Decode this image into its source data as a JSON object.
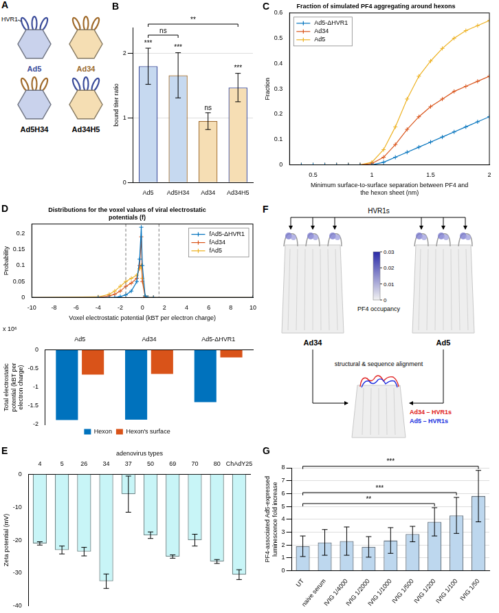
{
  "chart_data": [
    {
      "panel": "B",
      "type": "bar",
      "categories": [
        "Ad5",
        "Ad5H34",
        "Ad34",
        "Ad34H5"
      ],
      "values": [
        1.8,
        1.66,
        0.95,
        1.47
      ],
      "errors": [
        0.28,
        0.35,
        0.13,
        0.22
      ],
      "colors": [
        "#c6d9f0",
        "#c6d9f0",
        "#f6deb4",
        "#f6deb4"
      ],
      "y_label": "bound titer ratio",
      "ylim": [
        0,
        2.4
      ],
      "yticks": [
        0,
        1,
        2
      ],
      "grid": true,
      "significance": [
        "***",
        "***",
        "ns",
        "***"
      ],
      "brackets": [
        {
          "from": "Ad5",
          "to": "Ad5H34",
          "label": "ns"
        },
        {
          "from": "Ad5",
          "to": "Ad34H5",
          "label": "**"
        }
      ]
    },
    {
      "panel": "C",
      "type": "line",
      "title": "Fraction of simulated PF4 aggregating around hexons",
      "x_label": "Minimum surface-to-surface separation between PF4 and the hexon sheet (nm)",
      "y_label": "Fraction",
      "x": [
        0.4,
        0.5,
        0.6,
        0.7,
        0.8,
        0.9,
        1.0,
        1.1,
        1.2,
        1.3,
        1.4,
        1.5,
        1.6,
        1.7,
        1.8,
        1.9,
        2.0
      ],
      "series": [
        {
          "name": "Ad5-ΔHVR1",
          "color": "#0072bd",
          "values": [
            0,
            0,
            0,
            0,
            0,
            0,
            0,
            0.01,
            0.03,
            0.05,
            0.07,
            0.09,
            0.11,
            0.13,
            0.15,
            0.17,
            0.19
          ]
        },
        {
          "name": "Ad34",
          "color": "#d95319",
          "values": [
            0,
            0,
            0,
            0,
            0,
            0,
            0.005,
            0.03,
            0.08,
            0.14,
            0.19,
            0.23,
            0.26,
            0.29,
            0.31,
            0.33,
            0.35
          ]
        },
        {
          "name": "Ad5",
          "color": "#edb120",
          "values": [
            0,
            0,
            0,
            0,
            0,
            0,
            0.01,
            0.06,
            0.15,
            0.26,
            0.35,
            0.41,
            0.46,
            0.5,
            0.53,
            0.55,
            0.57
          ]
        }
      ],
      "xlim": [
        0.3,
        2
      ],
      "xticks": [
        0.5,
        1,
        1.5,
        2
      ],
      "ylim": [
        0,
        0.6
      ],
      "yticks": [
        0,
        0.1,
        0.2,
        0.3,
        0.4,
        0.5,
        0.6
      ],
      "grid": false,
      "legend": "top-left",
      "marker": "cross"
    },
    {
      "panel": "D",
      "type": "line",
      "title": "Distributions for the voxel values of viral electrostatic potentials (f)",
      "x_label": "Voxel electrostatic potential (kBT per electron charge)",
      "y_label": "Probability",
      "x": [
        -10,
        -4,
        -3,
        -2.5,
        -2,
        -1.5,
        -1,
        -0.5,
        -0.25,
        -0.1,
        0,
        0.25,
        0.5,
        1,
        10
      ],
      "series": [
        {
          "name": "fAd5-ΔHVR1",
          "color": "#0072bd",
          "values": [
            0,
            0,
            0,
            0,
            0.003,
            0.008,
            0.02,
            0.05,
            0.12,
            0.22,
            0.1,
            0.005,
            0,
            0,
            0
          ]
        },
        {
          "name": "fAd34",
          "color": "#d95319",
          "values": [
            0,
            0,
            0.005,
            0.01,
            0.02,
            0.035,
            0.045,
            0.06,
            0.1,
            0.19,
            0.05,
            0.002,
            0,
            0,
            0
          ]
        },
        {
          "name": "fAd5",
          "color": "#edb120",
          "values": [
            0,
            0.002,
            0.01,
            0.02,
            0.035,
            0.05,
            0.06,
            0.07,
            0.09,
            0.1,
            0.06,
            0.005,
            0,
            0,
            0
          ]
        }
      ],
      "xlim": [
        -10,
        10
      ],
      "xticks": [
        -10,
        -8,
        -6,
        -4,
        -2,
        0,
        2,
        4,
        6,
        8,
        10
      ],
      "ylim": [
        0,
        0.23
      ],
      "yticks": [
        0,
        0.05,
        0.1,
        0.15,
        0.2
      ],
      "grid": false,
      "legend": "top-right",
      "marker": "cross",
      "reference_lines": [
        {
          "x": -1.5,
          "line_style": "dashed"
        },
        {
          "x": 1.5,
          "line_style": "dashed"
        }
      ]
    },
    {
      "type": "bar",
      "categories": [
        "Ad5",
        "Ad34",
        "Ad5-ΔHVR1"
      ],
      "series": [
        {
          "name": "Hexon",
          "color": "#0072bd",
          "values": [
            -1.88,
            -1.87,
            -1.4
          ]
        },
        {
          "name": "Hexon's surface",
          "color": "#d95319",
          "values": [
            -0.66,
            -0.64,
            -0.2
          ]
        }
      ],
      "y_label": "Total electrostatic potential (kBT per electron charge)",
      "y_scale_note": "x 10⁶",
      "ylim": [
        -2,
        0
      ],
      "yticks": [
        -2,
        -1.5,
        -1,
        -0.5,
        0
      ],
      "grid": false,
      "legend": "bottom"
    },
    {
      "panel": "E",
      "type": "bar",
      "x_label": "adenovirus types",
      "categories": [
        "4",
        "5",
        "26",
        "34",
        "37",
        "50",
        "69",
        "70",
        "80",
        "ChAdY25"
      ],
      "values": [
        -21,
        -23,
        -23.5,
        -32.5,
        -6,
        -18.5,
        -25,
        -20,
        -26.5,
        -30.5
      ],
      "errors": [
        0.5,
        1.2,
        1.3,
        2.2,
        5.5,
        1,
        0.5,
        1.8,
        0.6,
        1.5
      ],
      "color": "#c8f5f7",
      "y_label": "Zeta potential (mV)",
      "ylim": [
        -40,
        0
      ],
      "yticks": [
        -40,
        -30,
        -20,
        -10,
        0
      ],
      "grid": false
    },
    {
      "panel": "G",
      "type": "bar",
      "categories": [
        "UT",
        "naive serum",
        "IVIG 1/4000",
        "IVIG 1/2000",
        "IVIG 1/1000",
        "IVIG 1/500",
        "IVIG 1/200",
        "IVIG 1/100",
        "IVIG 1/50"
      ],
      "values": [
        1.9,
        2.2,
        2.3,
        1.85,
        2.35,
        2.85,
        3.8,
        4.3,
        5.8
      ],
      "errors": [
        0.8,
        1.0,
        1.1,
        0.8,
        1.0,
        0.6,
        1.1,
        1.4,
        2.0
      ],
      "color": "#bdd7ee",
      "y_label": "PF4-associated Ad5-expressed luminescence fold increase",
      "ylim": [
        0,
        8
      ],
      "yticks": [
        0,
        1,
        2,
        3,
        4,
        5,
        6,
        7,
        8
      ],
      "grid": true,
      "brackets": [
        {
          "from": "UT",
          "to": "IVIG 1/200",
          "label": "**"
        },
        {
          "from": "UT",
          "to": "IVIG 1/100",
          "label": "***"
        },
        {
          "from": "UT",
          "to": "IVIG 1/50",
          "label": "***"
        }
      ]
    }
  ],
  "diagram_a": {
    "panel": "A",
    "label": "HVR1",
    "viruses": [
      {
        "name": "Ad5",
        "color": "#3a4b9a",
        "capsid_color": "#c9d2ec",
        "hvr1_color": "#3a4b9a"
      },
      {
        "name": "Ad34",
        "color": "#9a6a2e",
        "capsid_color": "#f5deb3",
        "hvr1_color": "#a06a2a"
      },
      {
        "name": "Ad5H34",
        "color": "#000000",
        "capsid_color": "#c9d2ec",
        "hvr1_color": "#a06a2a"
      },
      {
        "name": "Ad34H5",
        "color": "#000000",
        "capsid_color": "#f5deb3",
        "hvr1_color": "#3a4b9a"
      }
    ]
  },
  "diagram_f": {
    "panel": "F",
    "label": "HVR1s",
    "structures": [
      "Ad34",
      "Ad5"
    ],
    "colorbar": {
      "title": "PF4 occupancy",
      "range": [
        0,
        0.03
      ],
      "ticks": [
        0,
        0.01,
        0.02,
        0.03
      ]
    },
    "alignment_label": "structural & sequence alignment",
    "overlay_labels": [
      {
        "text": "Ad34 – HVR1s",
        "color": "#e02020"
      },
      {
        "text": "Ad5 – HVR1s",
        "color": "#2030e0"
      }
    ]
  }
}
